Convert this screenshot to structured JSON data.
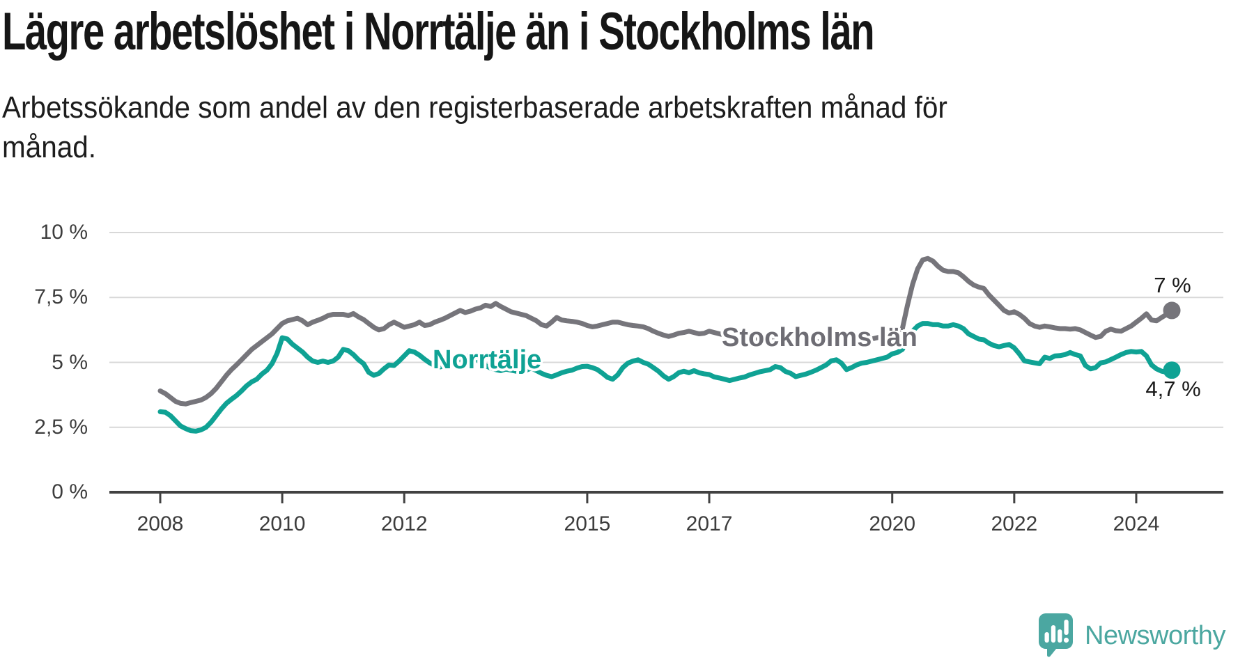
{
  "title": "Lägre arbetslöshet i Norrtälje än i Stockholms län",
  "subtitle": {
    "full": "Arbetssökande som andel av den registerbaserade arbetskraften månad för månad.",
    "lines": [
      "Arbetssökande som andel av den registerbaserade arbetskraften månad för",
      "månad."
    ]
  },
  "branding": {
    "logo_text": "Newsworthy",
    "logo_color": "#4ba7a0"
  },
  "colors": {
    "axis": "#414141",
    "grid": "#d8d8d8",
    "tick_text": "#3d3d3d",
    "stockholm_gray": "#76757b",
    "norrtalje_teal": "#0fa294"
  },
  "chart_data": {
    "type": "line",
    "title": "Lägre arbetslöshet i Norrtälje än i Stockholms län",
    "xlabel": "",
    "ylabel": "Arbetssökande som andel av den registerbaserade arbetskraften",
    "x_unit": "months from 2008-01 to 2024-08",
    "start_year": 2008,
    "ylim": [
      0,
      10
    ],
    "grid": "horizontal",
    "x_tick_years": [
      2008,
      2010,
      2012,
      2015,
      2017,
      2020,
      2022,
      2024
    ],
    "y_ticks": [
      {
        "value": 10,
        "label": "10 %"
      },
      {
        "value": 7.5,
        "label": "7,5 %"
      },
      {
        "value": 5,
        "label": "5 %"
      },
      {
        "value": 2.5,
        "label": "2,5 %"
      },
      {
        "value": 0,
        "label": "0 %"
      }
    ],
    "series": [
      {
        "name": "Stockholms län",
        "color": "#76757b",
        "end_label": "7 %",
        "end_value": 7.0,
        "values": [
          3.9,
          3.8,
          3.65,
          3.5,
          3.42,
          3.4,
          3.45,
          3.5,
          3.55,
          3.65,
          3.8,
          4.0,
          4.25,
          4.5,
          4.72,
          4.9,
          5.1,
          5.3,
          5.5,
          5.65,
          5.8,
          5.95,
          6.1,
          6.3,
          6.5,
          6.6,
          6.65,
          6.7,
          6.6,
          6.45,
          6.55,
          6.62,
          6.7,
          6.8,
          6.85,
          6.85,
          6.85,
          6.8,
          6.88,
          6.75,
          6.65,
          6.5,
          6.35,
          6.25,
          6.3,
          6.45,
          6.55,
          6.45,
          6.35,
          6.4,
          6.45,
          6.55,
          6.42,
          6.45,
          6.55,
          6.62,
          6.7,
          6.8,
          6.9,
          7.0,
          6.92,
          6.97,
          7.05,
          7.1,
          7.2,
          7.15,
          7.27,
          7.15,
          7.05,
          6.95,
          6.9,
          6.85,
          6.8,
          6.7,
          6.6,
          6.45,
          6.4,
          6.55,
          6.73,
          6.63,
          6.6,
          6.58,
          6.55,
          6.5,
          6.42,
          6.37,
          6.4,
          6.45,
          6.5,
          6.55,
          6.55,
          6.5,
          6.45,
          6.42,
          6.4,
          6.37,
          6.3,
          6.2,
          6.12,
          6.05,
          6.0,
          6.05,
          6.12,
          6.15,
          6.2,
          6.15,
          6.1,
          6.12,
          6.2,
          6.15,
          6.1,
          6.05,
          6.0,
          6.02,
          6.08,
          6.02,
          5.95,
          5.9,
          5.92,
          5.95,
          6.0,
          5.95,
          5.9,
          5.85,
          5.8,
          5.85,
          5.9,
          5.85,
          5.8,
          5.78,
          5.82,
          5.87,
          5.9,
          5.87,
          5.82,
          5.85,
          5.9,
          5.95,
          6.0,
          5.95,
          5.9,
          5.95,
          6.0,
          6.02,
          6.05,
          6.1,
          6.3,
          7.2,
          8.0,
          8.6,
          8.95,
          9.0,
          8.9,
          8.7,
          8.55,
          8.5,
          8.5,
          8.45,
          8.3,
          8.12,
          7.98,
          7.9,
          7.85,
          7.6,
          7.4,
          7.2,
          7.0,
          6.9,
          6.95,
          6.85,
          6.7,
          6.5,
          6.4,
          6.35,
          6.4,
          6.37,
          6.33,
          6.3,
          6.3,
          6.28,
          6.3,
          6.25,
          6.15,
          6.05,
          5.96,
          6.0,
          6.2,
          6.28,
          6.22,
          6.2,
          6.3,
          6.4,
          6.55,
          6.7,
          6.87,
          6.63,
          6.6,
          6.73,
          6.85,
          7.0
        ]
      },
      {
        "name": "Norrtälje",
        "color": "#0fa294",
        "end_label": "4,7 %",
        "end_value": 4.7,
        "values": [
          3.1,
          3.08,
          2.95,
          2.75,
          2.55,
          2.45,
          2.37,
          2.35,
          2.4,
          2.5,
          2.7,
          2.95,
          3.2,
          3.42,
          3.58,
          3.72,
          3.9,
          4.1,
          4.25,
          4.35,
          4.55,
          4.7,
          4.95,
          5.35,
          5.95,
          5.9,
          5.7,
          5.55,
          5.4,
          5.2,
          5.05,
          5.0,
          5.05,
          5.0,
          5.05,
          5.2,
          5.5,
          5.45,
          5.3,
          5.1,
          4.95,
          4.62,
          4.5,
          4.57,
          4.75,
          4.9,
          4.88,
          5.05,
          5.25,
          5.45,
          5.4,
          5.28,
          5.12,
          4.98,
          4.88,
          4.82,
          4.88,
          4.98,
          5.05,
          5.12,
          5.2,
          5.28,
          5.15,
          5.0,
          4.88,
          4.78,
          4.72,
          4.68,
          4.74,
          4.7,
          4.66,
          4.62,
          4.7,
          4.78,
          4.68,
          4.58,
          4.5,
          4.45,
          4.52,
          4.6,
          4.66,
          4.7,
          4.78,
          4.84,
          4.85,
          4.8,
          4.72,
          4.58,
          4.42,
          4.35,
          4.52,
          4.8,
          4.97,
          5.05,
          5.1,
          5.0,
          4.93,
          4.8,
          4.66,
          4.48,
          4.35,
          4.45,
          4.6,
          4.66,
          4.6,
          4.68,
          4.6,
          4.56,
          4.53,
          4.44,
          4.4,
          4.35,
          4.3,
          4.35,
          4.4,
          4.44,
          4.52,
          4.58,
          4.64,
          4.68,
          4.72,
          4.84,
          4.8,
          4.65,
          4.58,
          4.45,
          4.5,
          4.55,
          4.62,
          4.7,
          4.8,
          4.9,
          5.06,
          5.1,
          4.97,
          4.72,
          4.8,
          4.9,
          4.97,
          5.0,
          5.05,
          5.1,
          5.15,
          5.2,
          5.33,
          5.38,
          5.5,
          5.9,
          6.2,
          6.4,
          6.5,
          6.5,
          6.45,
          6.45,
          6.4,
          6.4,
          6.45,
          6.4,
          6.3,
          6.1,
          6.0,
          5.9,
          5.87,
          5.74,
          5.65,
          5.6,
          5.65,
          5.69,
          5.56,
          5.33,
          5.06,
          5.02,
          4.98,
          4.95,
          5.2,
          5.15,
          5.25,
          5.26,
          5.3,
          5.38,
          5.3,
          5.25,
          4.88,
          4.75,
          4.8,
          4.98,
          5.02,
          5.11,
          5.2,
          5.3,
          5.38,
          5.42,
          5.4,
          5.42,
          5.25,
          4.9,
          4.75,
          4.66,
          4.62,
          4.7
        ]
      }
    ]
  }
}
